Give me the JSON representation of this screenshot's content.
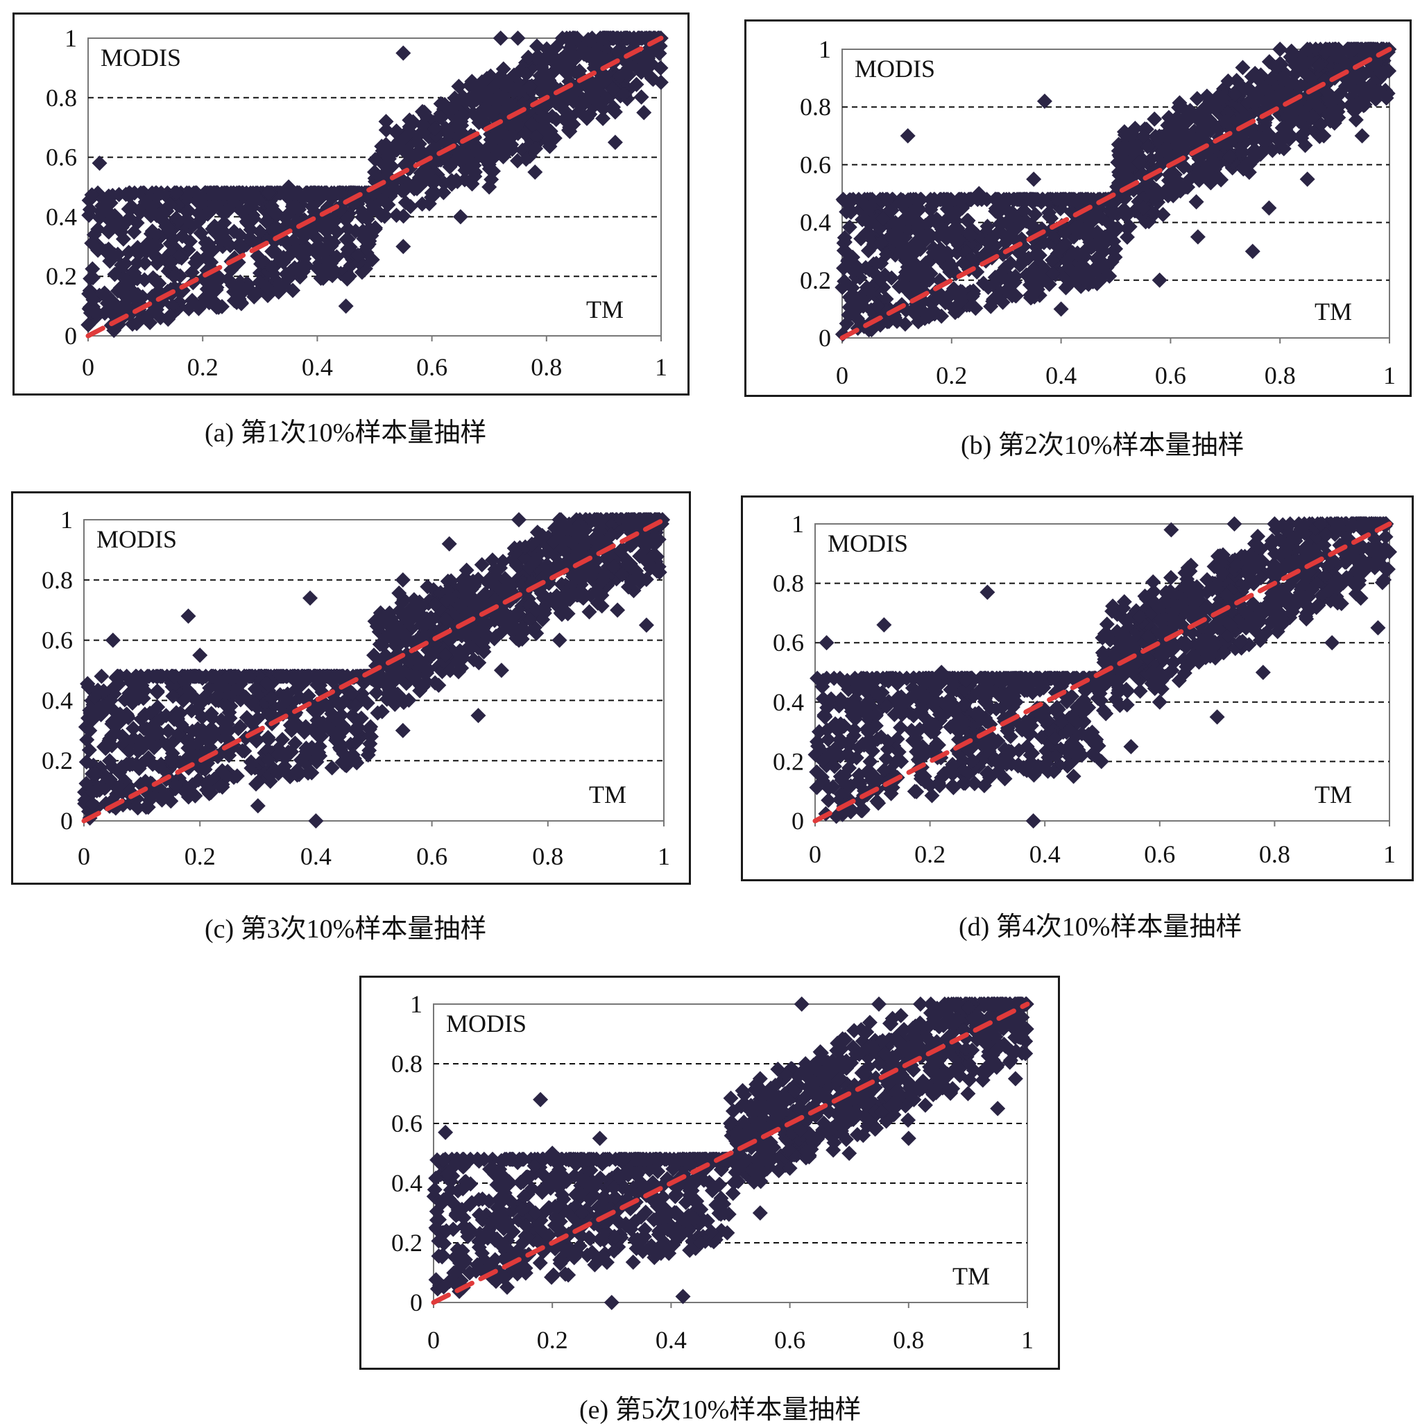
{
  "chart_data": [
    {
      "type": "scatter",
      "caption": "(a) 第1次10%样本量抽样",
      "ylabel": "MODIS",
      "xlabel": "TM",
      "xlim": [
        0,
        1
      ],
      "ylim": [
        0,
        1
      ],
      "xticks": [
        "0",
        "0.2",
        "0.4",
        "0.6",
        "0.8",
        "1"
      ],
      "yticks": [
        "0",
        "0.2",
        "0.4",
        "0.6",
        "0.8",
        "1"
      ],
      "grid": "horizontal dashed",
      "reference_line": {
        "x": [
          0,
          1
        ],
        "y": [
          0,
          1
        ],
        "color": "#e03a3a",
        "style": "dashed"
      },
      "marker_color": "#2b2545",
      "points": [
        [
          0.02,
          0.58
        ],
        [
          0.55,
          0.95
        ],
        [
          0.72,
          1.0
        ],
        [
          0.75,
          1.0
        ],
        [
          0.85,
          1.0
        ],
        [
          0.9,
          1.0
        ],
        [
          0.6,
          0.62
        ],
        [
          0.52,
          0.72
        ],
        [
          0.68,
          0.82
        ],
        [
          0.8,
          0.7
        ],
        [
          0.92,
          0.65
        ],
        [
          0.6,
          0.48
        ],
        [
          0.7,
          0.5
        ],
        [
          0.5,
          0.55
        ],
        [
          0.1,
          0.45
        ],
        [
          0.2,
          0.4
        ],
        [
          0.3,
          0.35
        ],
        [
          0.4,
          0.3
        ],
        [
          0.45,
          0.1
        ],
        [
          0.05,
          0.05
        ],
        [
          0.15,
          0.2
        ],
        [
          0.25,
          0.25
        ],
        [
          0.35,
          0.5
        ],
        [
          0.95,
          0.95
        ],
        [
          0.88,
          0.85
        ],
        [
          0.65,
          0.4
        ],
        [
          0.78,
          0.55
        ],
        [
          0.55,
          0.3
        ],
        [
          0.97,
          0.75
        ],
        [
          0.58,
          0.68
        ]
      ]
    },
    {
      "type": "scatter",
      "caption": "(b) 第2次10%样本量抽样",
      "ylabel": "MODIS",
      "xlabel": "TM",
      "xlim": [
        0,
        1
      ],
      "ylim": [
        0,
        1
      ],
      "xticks": [
        "0",
        "0.2",
        "0.4",
        "0.6",
        "0.8",
        "1"
      ],
      "yticks": [
        "0",
        "0.2",
        "0.4",
        "0.6",
        "0.8",
        "1"
      ],
      "grid": "horizontal dashed",
      "reference_line": {
        "x": [
          0,
          1
        ],
        "y": [
          0,
          1
        ],
        "color": "#e03a3a",
        "style": "dashed"
      },
      "marker_color": "#2b2545",
      "points": [
        [
          0.37,
          0.82
        ],
        [
          0.8,
          1.0
        ],
        [
          0.85,
          1.0
        ],
        [
          0.9,
          1.0
        ],
        [
          0.95,
          1.0
        ],
        [
          0.12,
          0.7
        ],
        [
          0.6,
          0.7
        ],
        [
          0.7,
          0.75
        ],
        [
          0.8,
          0.85
        ],
        [
          0.9,
          0.9
        ],
        [
          0.55,
          0.45
        ],
        [
          0.65,
          0.35
        ],
        [
          0.75,
          0.3
        ],
        [
          0.85,
          0.55
        ],
        [
          0.95,
          0.7
        ],
        [
          0.5,
          0.5
        ],
        [
          0.4,
          0.1
        ],
        [
          0.05,
          0.05
        ],
        [
          0.2,
          0.25
        ],
        [
          0.3,
          0.4
        ],
        [
          0.45,
          0.2
        ],
        [
          0.58,
          0.2
        ],
        [
          0.68,
          0.55
        ],
        [
          0.78,
          0.45
        ],
        [
          0.88,
          0.7
        ],
        [
          0.98,
          0.85
        ],
        [
          0.15,
          0.35
        ],
        [
          0.25,
          0.5
        ],
        [
          0.35,
          0.55
        ],
        [
          0.62,
          0.6
        ]
      ]
    },
    {
      "type": "scatter",
      "caption": "(c) 第3次10%样本量抽样",
      "ylabel": "MODIS",
      "xlabel": "TM",
      "xlim": [
        0,
        1
      ],
      "ylim": [
        0,
        1
      ],
      "xticks": [
        "0",
        "0.2",
        "0.4",
        "0.6",
        "0.8",
        "1"
      ],
      "yticks": [
        "0",
        "0.2",
        "0.4",
        "0.6",
        "0.8",
        "1"
      ],
      "grid": "horizontal dashed",
      "reference_line": {
        "x": [
          0,
          1
        ],
        "y": [
          0,
          1
        ],
        "color": "#e03a3a",
        "style": "dashed"
      },
      "marker_color": "#2b2545",
      "points": [
        [
          0.05,
          0.6
        ],
        [
          0.18,
          0.68
        ],
        [
          0.39,
          0.74
        ],
        [
          0.63,
          0.92
        ],
        [
          0.75,
          1.0
        ],
        [
          0.82,
          1.0
        ],
        [
          0.88,
          1.0
        ],
        [
          0.95,
          1.0
        ],
        [
          0.55,
          0.8
        ],
        [
          0.65,
          0.65
        ],
        [
          0.75,
          0.6
        ],
        [
          0.85,
          0.75
        ],
        [
          0.92,
          0.7
        ],
        [
          0.58,
          0.45
        ],
        [
          0.68,
          0.35
        ],
        [
          0.55,
          0.3
        ],
        [
          0.45,
          0.2
        ],
        [
          0.05,
          0.05
        ],
        [
          0.15,
          0.2
        ],
        [
          0.25,
          0.3
        ],
        [
          0.35,
          0.4
        ],
        [
          0.3,
          0.05
        ],
        [
          0.4,
          0.0
        ],
        [
          0.1,
          0.45
        ],
        [
          0.2,
          0.55
        ],
        [
          0.72,
          0.5
        ],
        [
          0.82,
          0.6
        ],
        [
          0.97,
          0.65
        ],
        [
          0.6,
          0.55
        ],
        [
          0.5,
          0.55
        ]
      ]
    },
    {
      "type": "scatter",
      "caption": "(d) 第4次10%样本量抽样",
      "ylabel": "MODIS",
      "xlabel": "TM",
      "xlim": [
        0,
        1
      ],
      "ylim": [
        0,
        1
      ],
      "xticks": [
        "0",
        "0.2",
        "0.4",
        "0.6",
        "0.8",
        "1"
      ],
      "yticks": [
        "0",
        "0.2",
        "0.4",
        "0.6",
        "0.8",
        "1"
      ],
      "grid": "horizontal dashed",
      "reference_line": {
        "x": [
          0,
          1
        ],
        "y": [
          0,
          1
        ],
        "color": "#e03a3a",
        "style": "dashed"
      },
      "marker_color": "#2b2545",
      "points": [
        [
          0.02,
          0.6
        ],
        [
          0.12,
          0.66
        ],
        [
          0.3,
          0.77
        ],
        [
          0.62,
          0.98
        ],
        [
          0.73,
          1.0
        ],
        [
          0.8,
          1.0
        ],
        [
          0.88,
          1.0
        ],
        [
          0.95,
          1.0
        ],
        [
          0.55,
          0.6
        ],
        [
          0.65,
          0.7
        ],
        [
          0.75,
          0.65
        ],
        [
          0.85,
          0.85
        ],
        [
          0.95,
          0.75
        ],
        [
          0.6,
          0.4
        ],
        [
          0.7,
          0.35
        ],
        [
          0.55,
          0.25
        ],
        [
          0.5,
          0.45
        ],
        [
          0.05,
          0.05
        ],
        [
          0.15,
          0.2
        ],
        [
          0.25,
          0.3
        ],
        [
          0.35,
          0.4
        ],
        [
          0.45,
          0.15
        ],
        [
          0.38,
          0.0
        ],
        [
          0.1,
          0.45
        ],
        [
          0.22,
          0.5
        ],
        [
          0.78,
          0.5
        ],
        [
          0.9,
          0.6
        ],
        [
          0.98,
          0.65
        ],
        [
          0.68,
          0.55
        ],
        [
          0.58,
          0.62
        ]
      ]
    },
    {
      "type": "scatter",
      "caption": "(e) 第5次10%样本量抽样",
      "ylabel": "MODIS",
      "xlabel": "TM",
      "xlim": [
        0,
        1
      ],
      "ylim": [
        0,
        1
      ],
      "xticks": [
        "0",
        "0.2",
        "0.4",
        "0.6",
        "0.8",
        "1"
      ],
      "yticks": [
        "0",
        "0.2",
        "0.4",
        "0.6",
        "0.8",
        "1"
      ],
      "grid": "horizontal dashed",
      "reference_line": {
        "x": [
          0,
          1
        ],
        "y": [
          0,
          1
        ],
        "color": "#e03a3a",
        "style": "dashed"
      },
      "marker_color": "#2b2545",
      "points": [
        [
          0.02,
          0.57
        ],
        [
          0.18,
          0.68
        ],
        [
          0.62,
          1.0
        ],
        [
          0.75,
          1.0
        ],
        [
          0.82,
          1.0
        ],
        [
          0.88,
          1.0
        ],
        [
          0.95,
          1.0
        ],
        [
          0.55,
          0.75
        ],
        [
          0.65,
          0.7
        ],
        [
          0.75,
          0.8
        ],
        [
          0.85,
          0.85
        ],
        [
          0.95,
          0.65
        ],
        [
          0.6,
          0.45
        ],
        [
          0.7,
          0.5
        ],
        [
          0.8,
          0.55
        ],
        [
          0.55,
          0.3
        ],
        [
          0.45,
          0.2
        ],
        [
          0.05,
          0.05
        ],
        [
          0.15,
          0.2
        ],
        [
          0.25,
          0.3
        ],
        [
          0.35,
          0.4
        ],
        [
          0.3,
          0.0
        ],
        [
          0.42,
          0.02
        ],
        [
          0.1,
          0.45
        ],
        [
          0.2,
          0.5
        ],
        [
          0.28,
          0.55
        ],
        [
          0.9,
          0.7
        ],
        [
          0.98,
          0.75
        ],
        [
          0.68,
          0.6
        ],
        [
          0.5,
          0.6
        ]
      ]
    }
  ]
}
